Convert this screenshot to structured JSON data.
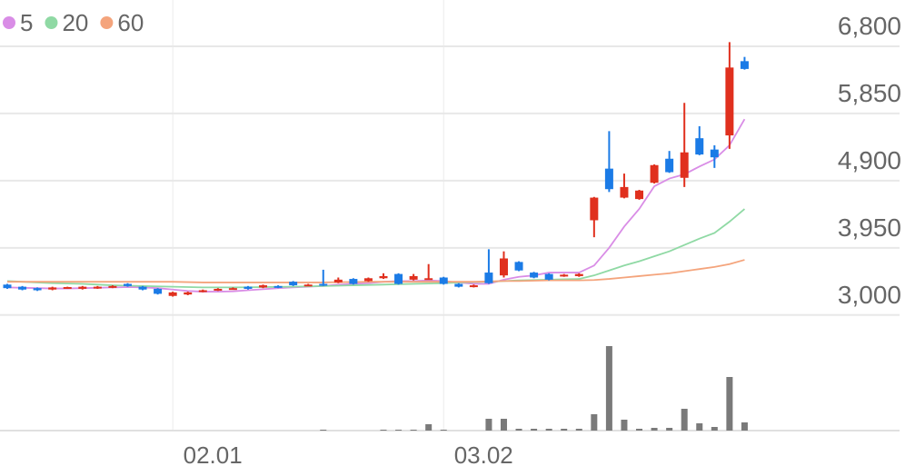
{
  "chart_data": {
    "type": "candlestick",
    "categories": [
      null,
      null,
      null,
      null,
      null,
      null,
      null,
      null,
      null,
      null,
      null,
      "02.01",
      null,
      null,
      null,
      null,
      null,
      null,
      null,
      null,
      null,
      null,
      null,
      null,
      null,
      null,
      null,
      null,
      null,
      "03.02",
      null,
      null,
      null,
      null,
      null,
      null,
      null,
      null,
      null,
      null,
      null,
      null,
      null,
      null,
      null,
      null,
      null,
      null,
      null,
      null
    ],
    "open": [
      3430,
      3400,
      3380,
      3360,
      3380,
      3370,
      3380,
      3390,
      3440,
      3400,
      3370,
      3270,
      3290,
      3330,
      3350,
      3370,
      3400,
      3390,
      3410,
      3470,
      3420,
      3440,
      3460,
      3510,
      3480,
      3520,
      3580,
      3500,
      3510,
      3530,
      3440,
      3400,
      3600,
      3560,
      3750,
      3600,
      3580,
      3550,
      3550,
      4340,
      5070,
      4660,
      4640,
      4870,
      5210,
      4940,
      5500,
      5340,
      5540,
      6590
    ],
    "high": [
      3440,
      3410,
      3390,
      3400,
      3400,
      3410,
      3410,
      3420,
      3450,
      3410,
      3380,
      3330,
      3330,
      3360,
      3380,
      3390,
      3410,
      3430,
      3420,
      3480,
      3440,
      3640,
      3530,
      3520,
      3530,
      3590,
      3590,
      3580,
      3720,
      3540,
      3450,
      3430,
      3930,
      3900,
      3760,
      3610,
      3590,
      3580,
      3590,
      4670,
      5600,
      5000,
      4770,
      5130,
      5320,
      6000,
      5670,
      5400,
      6860,
      6650
    ],
    "low": [
      3370,
      3350,
      3340,
      3350,
      3370,
      3360,
      3370,
      3380,
      3400,
      3350,
      3290,
      3260,
      3280,
      3320,
      3340,
      3360,
      3360,
      3380,
      3380,
      3410,
      3410,
      3410,
      3450,
      3430,
      3470,
      3510,
      3430,
      3490,
      3500,
      3430,
      3390,
      3390,
      3440,
      3530,
      3620,
      3520,
      3490,
      3540,
      3540,
      4100,
      4740,
      4650,
      4630,
      4860,
      5010,
      4810,
      5260,
      5080,
      5350,
      6470
    ],
    "close": [
      3380,
      3360,
      3350,
      3390,
      3395,
      3400,
      3400,
      3410,
      3410,
      3360,
      3300,
      3320,
      3320,
      3350,
      3370,
      3380,
      3370,
      3420,
      3390,
      3420,
      3430,
      3420,
      3500,
      3440,
      3520,
      3550,
      3440,
      3550,
      3520,
      3440,
      3400,
      3420,
      3450,
      3800,
      3630,
      3530,
      3500,
      3570,
      3580,
      4660,
      4780,
      4810,
      4760,
      5120,
      5020,
      5300,
      5270,
      5230,
      6500,
      6480
    ],
    "up_color": "#e0301e",
    "down_color": "#1b7be6",
    "series": [
      {
        "name": "5",
        "color": "#d98de6",
        "values": [
          3390,
          3385,
          3380,
          3375,
          3375,
          3380,
          3385,
          3390,
          3395,
          3390,
          3380,
          3360,
          3340,
          3330,
          3330,
          3335,
          3350,
          3365,
          3380,
          3390,
          3400,
          3410,
          3430,
          3440,
          3450,
          3470,
          3480,
          3480,
          3490,
          3480,
          3460,
          3440,
          3440,
          3500,
          3540,
          3560,
          3600,
          3600,
          3600,
          3700,
          3950,
          4250,
          4500,
          4820,
          4930,
          4990,
          5100,
          5200,
          5400,
          5770
        ]
      },
      {
        "name": "20",
        "color": "#8fd9a4",
        "values": [
          3480,
          3470,
          3460,
          3450,
          3445,
          3440,
          3430,
          3420,
          3415,
          3410,
          3405,
          3400,
          3395,
          3390,
          3390,
          3390,
          3392,
          3395,
          3398,
          3400,
          3405,
          3410,
          3415,
          3420,
          3425,
          3430,
          3435,
          3440,
          3445,
          3450,
          3460,
          3465,
          3470,
          3480,
          3490,
          3495,
          3500,
          3505,
          3510,
          3560,
          3630,
          3700,
          3760,
          3830,
          3900,
          3990,
          4080,
          4160,
          4320,
          4500
        ]
      },
      {
        "name": "60",
        "color": "#f4a47c",
        "values": [
          3470,
          3470,
          3470,
          3470,
          3470,
          3470,
          3470,
          3470,
          3470,
          3470,
          3470,
          3470,
          3465,
          3460,
          3460,
          3460,
          3460,
          3460,
          3460,
          3460,
          3460,
          3460,
          3465,
          3465,
          3470,
          3470,
          3470,
          3470,
          3470,
          3470,
          3470,
          3470,
          3475,
          3480,
          3480,
          3485,
          3490,
          3490,
          3490,
          3495,
          3510,
          3530,
          3550,
          3570,
          3590,
          3620,
          3650,
          3680,
          3720,
          3780
        ]
      }
    ],
    "ylim": [
      2830,
      7455
    ],
    "yticks": [
      {
        "value": 3000,
        "label": "3,000"
      },
      {
        "value": 3950,
        "label": "3,950"
      },
      {
        "value": 4900,
        "label": "4,900"
      },
      {
        "value": 5850,
        "label": "5,850"
      },
      {
        "value": 6800,
        "label": "6,800"
      }
    ],
    "grid": true,
    "legend": "top-left",
    "volume": {
      "color": "#7a7a7a",
      "ylim": [
        0,
        100
      ],
      "values": [
        0,
        0,
        0,
        0,
        0,
        0,
        0,
        0,
        0,
        0,
        0,
        0,
        0,
        0,
        0,
        0,
        0,
        0,
        0,
        0,
        0,
        1,
        0,
        0,
        0,
        1,
        1,
        1,
        7,
        1,
        0,
        0,
        13,
        13,
        2,
        2,
        2,
        2,
        2,
        18,
        93,
        12,
        2,
        3,
        3,
        24,
        8,
        4,
        59,
        9
      ]
    }
  }
}
